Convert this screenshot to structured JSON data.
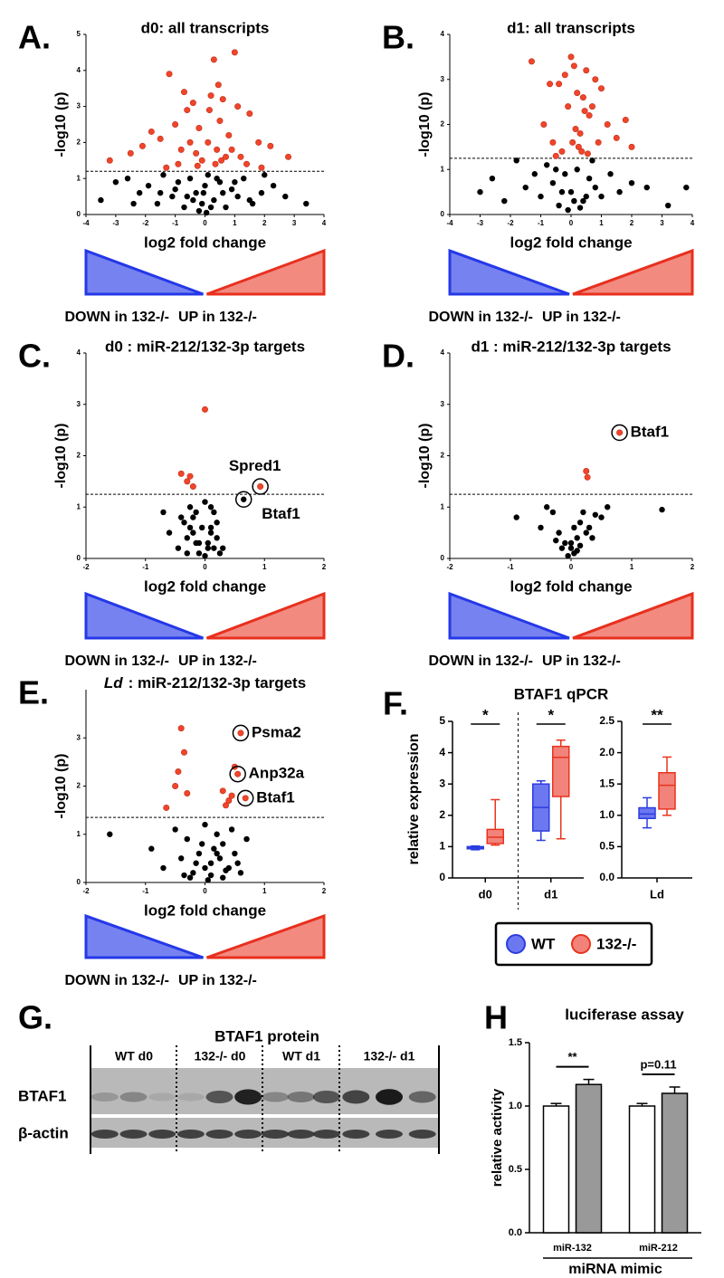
{
  "chart_data": [
    {
      "type": "scatter",
      "letter": "A.",
      "title": "d0: all transcripts",
      "xlabel": "log2 fold change",
      "ylabel": "-log10 (p)",
      "xlim": [
        -4,
        4
      ],
      "xticks": [
        -4,
        -3,
        -2,
        -1,
        0,
        1,
        2,
        3,
        4
      ],
      "ylim": [
        0,
        5
      ],
      "yticks": [
        0,
        1,
        2,
        3,
        4,
        5
      ],
      "threshold": 1.2,
      "series": [
        {
          "color": "#000000",
          "x": [
            -3.5,
            -3.0,
            -2.6,
            -2.2,
            -1.9,
            -1.6,
            -1.4,
            -1.1,
            -0.9,
            -0.7,
            -0.5,
            -0.3,
            -0.1,
            0.0,
            0.1,
            0.3,
            0.5,
            0.7,
            0.9,
            1.1,
            1.3,
            1.6,
            1.9,
            2.3,
            2.7,
            3.4,
            -0.2,
            0.2,
            -0.6,
            0.6,
            -1.0,
            1.0,
            -0.4,
            0.4,
            -1.5,
            1.5,
            -2.4,
            2.0,
            -0.05,
            0.05
          ],
          "values": [
            0.4,
            0.9,
            1.0,
            0.6,
            0.8,
            0.3,
            1.1,
            0.5,
            0.9,
            0.2,
            1.0,
            0.6,
            0.3,
            0.8,
            1.1,
            0.4,
            0.9,
            0.2,
            0.7,
            0.5,
            1.0,
            0.3,
            0.6,
            0.8,
            0.5,
            0.3,
            0.1,
            0.2,
            0.5,
            0.6,
            0.7,
            0.9,
            0.4,
            1.0,
            0.6,
            0.4,
            0.3,
            1.1,
            0.6,
            0.05
          ]
        },
        {
          "color": "#f0452a",
          "x": [
            -3.2,
            -2.1,
            -1.8,
            -1.5,
            -1.2,
            -1.0,
            -0.8,
            -0.6,
            -0.4,
            -0.3,
            -0.2,
            -0.1,
            0.1,
            0.2,
            0.3,
            0.4,
            0.5,
            0.6,
            0.8,
            1.0,
            1.2,
            1.5,
            1.8,
            2.2,
            2.8,
            -0.9,
            -0.5,
            0.35,
            0.7,
            1.1,
            -1.3,
            -0.7,
            0.15,
            0.55,
            0.9,
            -2.5,
            1.4,
            -0.25,
            0.45,
            1.9
          ],
          "values": [
            1.5,
            1.9,
            2.3,
            2.1,
            3.9,
            2.5,
            1.8,
            2.9,
            3.1,
            1.7,
            2.4,
            1.5,
            2.0,
            3.3,
            4.3,
            1.8,
            2.6,
            3.2,
            2.2,
            4.5,
            1.6,
            2.8,
            2.0,
            1.9,
            1.6,
            1.4,
            2.0,
            1.4,
            1.6,
            3.0,
            1.3,
            3.4,
            2.9,
            1.5,
            1.8,
            1.7,
            1.4,
            1.35,
            3.6,
            1.3
          ]
        }
      ],
      "annotations": [],
      "down_label": "DOWN in 132-/-",
      "up_label": "UP in 132-/-"
    },
    {
      "type": "scatter",
      "letter": "B.",
      "title": "d1: all transcripts",
      "xlabel": "log2 fold change",
      "ylabel": "-log10 (p)",
      "xlim": [
        -4,
        4
      ],
      "xticks": [
        -4,
        -3,
        -2,
        -1,
        0,
        1,
        2,
        3,
        4
      ],
      "ylim": [
        0,
        4
      ],
      "yticks": [
        0,
        1,
        2,
        3,
        4
      ],
      "threshold": 1.25,
      "series": [
        {
          "color": "#000000",
          "x": [
            -3.0,
            -2.6,
            -2.2,
            -1.8,
            -1.5,
            -1.2,
            -1.0,
            -0.8,
            -0.6,
            -0.4,
            -0.2,
            0.0,
            0.2,
            0.4,
            0.6,
            0.8,
            1.0,
            1.3,
            1.6,
            2.0,
            2.5,
            3.2,
            3.8,
            -0.1,
            0.1,
            -0.3,
            0.3,
            -0.5,
            0.5,
            0.7
          ],
          "values": [
            0.5,
            0.8,
            0.3,
            1.2,
            0.6,
            0.9,
            0.4,
            1.1,
            0.7,
            0.2,
            0.9,
            0.5,
            1.0,
            0.3,
            0.8,
            0.6,
            0.4,
            0.9,
            0.5,
            0.7,
            0.6,
            0.2,
            0.6,
            0.1,
            0.3,
            0.5,
            0.15,
            1.0,
            0.4,
            1.2
          ]
        },
        {
          "color": "#f0452a",
          "x": [
            -1.3,
            -0.9,
            -0.6,
            -0.4,
            -0.2,
            -0.1,
            0.0,
            0.1,
            0.2,
            0.3,
            0.4,
            0.5,
            0.6,
            0.8,
            1.0,
            1.2,
            1.5,
            2.0,
            -0.3,
            0.15,
            0.25,
            0.45,
            0.7,
            -0.5,
            0.05,
            0.35,
            0.9,
            1.8,
            -0.7,
            0.55
          ],
          "values": [
            3.4,
            2.0,
            1.6,
            2.9,
            3.1,
            2.4,
            3.5,
            3.3,
            2.7,
            1.8,
            2.6,
            3.2,
            2.2,
            3.0,
            2.8,
            2.0,
            1.7,
            1.5,
            1.4,
            1.9,
            1.5,
            2.3,
            2.4,
            1.3,
            1.6,
            1.4,
            1.6,
            2.1,
            2.9,
            1.35
          ]
        }
      ],
      "annotations": [],
      "down_label": "DOWN in 132-/-",
      "up_label": "UP in 132-/-"
    },
    {
      "type": "scatter",
      "letter": "C.",
      "title": "d0 : miR-212/132-3p targets",
      "xlabel": "log2 fold change",
      "ylabel": "-log10 (p)",
      "xlim": [
        -2,
        2
      ],
      "xticks": [
        -2,
        -1,
        0,
        1,
        2
      ],
      "ylim": [
        0,
        4
      ],
      "yticks": [
        0,
        1,
        2,
        3,
        4
      ],
      "threshold": 1.25,
      "series": [
        {
          "color": "#000000",
          "x": [
            -0.7,
            -0.6,
            -0.45,
            -0.35,
            -0.3,
            -0.25,
            -0.2,
            -0.15,
            -0.1,
            -0.05,
            0.0,
            0.05,
            0.1,
            0.15,
            0.2,
            0.25,
            -0.3,
            -0.2,
            -0.1,
            0.1,
            0.2,
            0.65,
            0.05,
            -0.25,
            0.15,
            -0.4,
            0.3,
            0.0,
            -0.15,
            0.1
          ],
          "values": [
            0.9,
            0.5,
            0.2,
            0.7,
            0.4,
            1.0,
            0.8,
            0.3,
            0.1,
            0.6,
            1.1,
            0.2,
            0.6,
            0.9,
            0.4,
            0.1,
            0.1,
            0.5,
            0.3,
            0.5,
            0.7,
            1.15,
            0.3,
            0.6,
            0.2,
            0.8,
            0.2,
            0.05,
            0.9,
            1.0
          ]
        },
        {
          "color": "#f0452a",
          "x": [
            0.0,
            -0.4,
            -0.25,
            -0.2,
            -0.3,
            0.93
          ],
          "values": [
            2.9,
            1.65,
            1.6,
            1.4,
            1.5,
            1.4
          ]
        }
      ],
      "annotations": [
        {
          "text": "Spred1",
          "x": 0.93,
          "y": 1.4
        },
        {
          "text": "Btaf1",
          "x": 0.65,
          "y": 1.15
        }
      ],
      "down_label": "DOWN in 132-/-",
      "up_label": "UP in 132-/-"
    },
    {
      "type": "scatter",
      "letter": "D.",
      "title": "d1 : miR-212/132-3p targets",
      "xlabel": "log2 fold change",
      "ylabel": "-log10 (p)",
      "xlim": [
        -2,
        2
      ],
      "xticks": [
        -2,
        -1,
        0,
        1,
        2
      ],
      "ylim": [
        0,
        4
      ],
      "yticks": [
        0,
        1,
        2,
        3,
        4
      ],
      "threshold": 1.25,
      "series": [
        {
          "color": "#000000",
          "x": [
            -0.9,
            -0.5,
            -0.4,
            -0.3,
            -0.2,
            -0.1,
            0.0,
            0.05,
            0.1,
            0.15,
            0.2,
            0.3,
            0.4,
            0.6,
            1.5,
            -0.15,
            -0.05,
            0.0,
            0.1,
            0.25,
            0.35,
            -0.25,
            0.05,
            0.15,
            0.5
          ],
          "values": [
            0.8,
            0.6,
            1.0,
            0.9,
            0.5,
            0.3,
            0.2,
            0.1,
            0.4,
            0.7,
            0.9,
            0.6,
            0.85,
            1.0,
            0.95,
            0.2,
            0.05,
            0.3,
            0.15,
            0.5,
            0.4,
            0.35,
            0.6,
            0.25,
            0.8
          ]
        },
        {
          "color": "#f0452a",
          "x": [
            0.8,
            0.25,
            0.27
          ],
          "values": [
            2.45,
            1.7,
            1.58
          ]
        }
      ],
      "annotations": [
        {
          "text": "Btaf1",
          "x": 0.8,
          "y": 2.45
        }
      ],
      "down_label": "DOWN in 132-/-",
      "up_label": "UP in 132-/-"
    },
    {
      "type": "scatter",
      "letter": "E.",
      "title_prefix": "Ld",
      "title": ": miR-212/132-3p targets",
      "xlabel": "log2 fold change",
      "ylabel": "-log10 (p)",
      "xlim": [
        -2,
        2
      ],
      "xticks": [
        -2,
        -1,
        0,
        1,
        2
      ],
      "ylim": [
        0,
        4
      ],
      "yticks": [
        0,
        1,
        2,
        3
      ],
      "threshold": 1.35,
      "series": [
        {
          "color": "#000000",
          "x": [
            -1.6,
            -0.9,
            -0.7,
            -0.5,
            -0.4,
            -0.3,
            -0.2,
            -0.1,
            0.0,
            0.1,
            0.2,
            0.3,
            0.4,
            0.5,
            0.6,
            0.7,
            -0.25,
            -0.15,
            0.05,
            0.15,
            0.25,
            0.35,
            -0.35,
            0.45,
            0.0,
            0.1,
            -0.05,
            0.2,
            0.3,
            0.55
          ],
          "values": [
            1.0,
            0.7,
            0.3,
            1.1,
            0.5,
            0.9,
            0.2,
            0.6,
            1.2,
            0.4,
            1.0,
            0.8,
            0.3,
            0.6,
            0.2,
            0.9,
            0.1,
            0.4,
            0.05,
            0.7,
            0.5,
            0.25,
            0.15,
            1.1,
            0.3,
            0.15,
            0.8,
            0.6,
            0.1,
            0.4
          ]
        },
        {
          "color": "#f0452a",
          "x": [
            -0.4,
            -0.35,
            -0.45,
            -0.5,
            -0.3,
            -0.65,
            0.6,
            0.55,
            0.68,
            0.3,
            0.35,
            0.4,
            0.5,
            0.45
          ],
          "values": [
            3.2,
            2.7,
            2.3,
            2.0,
            1.85,
            1.55,
            3.1,
            2.25,
            1.75,
            1.9,
            1.6,
            1.7,
            2.4,
            1.8
          ]
        }
      ],
      "annotations": [
        {
          "text": "Psma2",
          "x": 0.6,
          "y": 3.1
        },
        {
          "text": "Anp32a",
          "x": 0.55,
          "y": 2.25
        },
        {
          "text": "Btaf1",
          "x": 0.68,
          "y": 1.75
        }
      ],
      "down_label": "DOWN in 132-/-",
      "up_label": "UP in 132-/-"
    },
    {
      "type": "box",
      "letter": "F.",
      "title": "BTAF1 qPCR",
      "ylabel": "relative expression",
      "panels": [
        {
          "ylim": [
            0,
            5
          ],
          "yticks": [
            0,
            1,
            2,
            3,
            4,
            5
          ],
          "categories": [
            "d0",
            "d1"
          ],
          "significance": [
            "*",
            "*"
          ],
          "series": [
            {
              "name": "WT",
              "color": "#6c78f0",
              "edge_color": "#2b3de0",
              "boxes": [
                {
                  "min": 0.9,
                  "q1": 0.93,
                  "median": 0.96,
                  "q3": 1.0,
                  "max": 1.02
                },
                {
                  "min": 1.2,
                  "q1": 1.5,
                  "median": 2.25,
                  "q3": 3.0,
                  "max": 3.1
                }
              ]
            },
            {
              "name": "132-/-",
              "color": "#f2837a",
              "edge_color": "#e8341f",
              "boxes": [
                {
                  "min": 1.05,
                  "q1": 1.1,
                  "median": 1.3,
                  "q3": 1.55,
                  "max": 2.5
                },
                {
                  "min": 1.25,
                  "q1": 2.6,
                  "median": 3.85,
                  "q3": 4.2,
                  "max": 4.4
                }
              ]
            }
          ]
        },
        {
          "ylim": [
            0,
            2.5
          ],
          "yticks": [
            {
              "value": 0,
              "label": "0.0"
            },
            {
              "value": 0.5,
              "label": "0.5"
            },
            {
              "value": 1,
              "label": "1.0"
            },
            {
              "value": 1.5,
              "label": "1.5"
            },
            {
              "value": 2,
              "label": "2.0"
            },
            {
              "value": 2.5,
              "label": "2.5"
            }
          ],
          "categories": [
            "Ld"
          ],
          "significance": [
            "**"
          ],
          "series": [
            {
              "name": "WT",
              "color": "#6c78f0",
              "edge_color": "#2b3de0",
              "boxes": [
                {
                  "min": 0.8,
                  "q1": 0.95,
                  "median": 1.02,
                  "q3": 1.12,
                  "max": 1.28
                }
              ]
            },
            {
              "name": "132-/-",
              "color": "#f2837a",
              "edge_color": "#e8341f",
              "boxes": [
                {
                  "min": 1.0,
                  "q1": 1.1,
                  "median": 1.48,
                  "q3": 1.68,
                  "max": 1.93
                }
              ]
            }
          ]
        }
      ]
    },
    {
      "type": "bar",
      "letter": "H",
      "title": "luciferase assay",
      "ylabel": "relative activity",
      "xlabel": "miRNA mimic",
      "categories": [
        "miR-132",
        "miR-212"
      ],
      "ylim": [
        0,
        1.5
      ],
      "yticks": [
        {
          "value": 0,
          "label": "0.0"
        },
        {
          "value": 0.5,
          "label": "0.5"
        },
        {
          "value": 1,
          "label": "1.0"
        },
        {
          "value": 1.5,
          "label": "1.5"
        }
      ],
      "series": [
        {
          "color": "#ffffff",
          "values": [
            1.0,
            1.0
          ],
          "errors": [
            0.02,
            0.02
          ]
        },
        {
          "color": "#999999",
          "values": [
            1.17,
            1.1
          ],
          "errors": [
            0.04,
            0.05
          ]
        }
      ],
      "significance": [
        "**",
        "p=0.11"
      ]
    }
  ],
  "blot": {
    "letter": "G.",
    "title": "BTAF1 protein",
    "lanes": [
      "WT d0",
      "132-/- d0",
      "WT d1",
      "132-/- d1"
    ],
    "rows": [
      "BTAF1",
      "β-actin"
    ]
  }
}
